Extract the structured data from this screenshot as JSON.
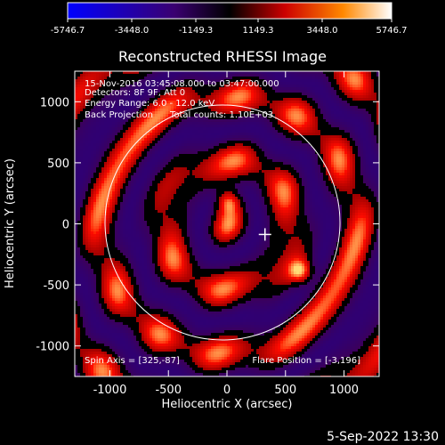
{
  "colorbar": {
    "ticks": [
      "-5746.7",
      "-3448.0",
      "-1149.3",
      "1149.3",
      "3448.0",
      "5746.7"
    ]
  },
  "chart_data": {
    "type": "heatmap",
    "title": "Reconstructed RHESSI Image",
    "xlabel": "Heliocentric X (arcsec)",
    "ylabel": "Heliocentric Y (arcsec)",
    "xlim": [
      -1300,
      1300
    ],
    "ylim": [
      -1250,
      1250
    ],
    "x_ticks": [
      -1000,
      -500,
      0,
      500,
      1000
    ],
    "y_ticks": [
      1000,
      500,
      0,
      -500,
      -1000
    ],
    "x_tick_labels": [
      "-1000",
      "-500",
      "0",
      "500",
      "1000"
    ],
    "y_tick_labels": [
      "1000",
      "500",
      "0",
      "-500",
      "-1000"
    ],
    "colorbar_range": [
      -5746.7,
      5746.7
    ],
    "solar_disk_radius": 1000,
    "flare_marker": [
      325,
      -87
    ],
    "info_lines": [
      "15-Nov-2016 03:45:08.000 to 03:47:00.000",
      "Detectors: 8F 9F, Att 0",
      "Energy Range: 6.0 - 12.0 keV",
      "Back Projection      Total counts: 1.10E+03"
    ],
    "spin_axis": "Spin Axis = [325,-87]",
    "flare_position": "Flare Position = [-3,196]",
    "date_stamp": "5-Sep-2022 13:30"
  }
}
